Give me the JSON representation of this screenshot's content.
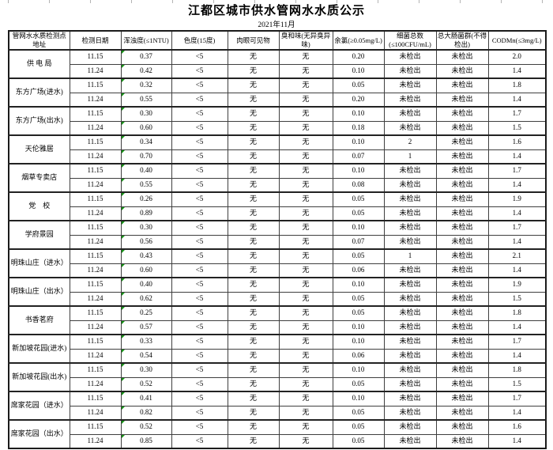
{
  "title": "江都区城市供水管网水水质公示",
  "subtitle": "2021年11月",
  "colors": {
    "flag_green": "#149414",
    "border_dark": "#1b1b1b"
  },
  "table": {
    "columns": [
      "管网水水质检测点地址",
      "检测日期",
      "浑浊度(≤1NTU)",
      "色度(15度)",
      "肉眼可见物",
      "臭和味(无异臭异味)",
      "余氯(≥0.05mg/L)",
      "细菌总数(≤100CFU/mL)",
      "总大肠菌群(不得检出)",
      "CODMn(≤3mg/L)"
    ],
    "groups": [
      {
        "location": "供 电 局",
        "rows": [
          {
            "date": "11.15",
            "turbidity": "0.37",
            "color": "<5",
            "visible": "无",
            "odor": "无",
            "chlorine": "0.20",
            "bacteria": "未检出",
            "coliform": "未检出",
            "codmn": "2.0"
          },
          {
            "date": "11.24",
            "turbidity": "0.42",
            "color": "<5",
            "visible": "无",
            "odor": "无",
            "chlorine": "0.10",
            "bacteria": "未检出",
            "coliform": "未检出",
            "codmn": "1.4"
          }
        ]
      },
      {
        "location": "东方广场(进水)",
        "rows": [
          {
            "date": "11.15",
            "turbidity": "0.32",
            "color": "<5",
            "visible": "无",
            "odor": "无",
            "chlorine": "0.05",
            "bacteria": "未检出",
            "coliform": "未检出",
            "codmn": "1.8"
          },
          {
            "date": "11.24",
            "turbidity": "0.55",
            "color": "<5",
            "visible": "无",
            "odor": "无",
            "chlorine": "0.20",
            "bacteria": "未检出",
            "coliform": "未检出",
            "codmn": "1.4"
          }
        ]
      },
      {
        "location": "东方广场(出水)",
        "rows": [
          {
            "date": "11.15",
            "turbidity": "0.30",
            "color": "<5",
            "visible": "无",
            "odor": "无",
            "chlorine": "0.10",
            "bacteria": "未检出",
            "coliform": "未检出",
            "codmn": "1.7"
          },
          {
            "date": "11.24",
            "turbidity": "0.60",
            "color": "<5",
            "visible": "无",
            "odor": "无",
            "chlorine": "0.18",
            "bacteria": "未检出",
            "coliform": "未检出",
            "codmn": "1.5"
          }
        ]
      },
      {
        "location": "天伦雅居",
        "rows": [
          {
            "date": "11.15",
            "turbidity": "0.34",
            "color": "<5",
            "visible": "无",
            "odor": "无",
            "chlorine": "0.10",
            "bacteria": "2",
            "coliform": "未检出",
            "codmn": "1.6"
          },
          {
            "date": "11.24",
            "turbidity": "0.70",
            "color": "<5",
            "visible": "无",
            "odor": "无",
            "chlorine": "0.07",
            "bacteria": "1",
            "coliform": "未检出",
            "codmn": "1.4"
          }
        ]
      },
      {
        "location": "烟草专卖店",
        "rows": [
          {
            "date": "11.15",
            "turbidity": "0.40",
            "color": "<5",
            "visible": "无",
            "odor": "无",
            "chlorine": "0.10",
            "bacteria": "未检出",
            "coliform": "未检出",
            "codmn": "1.7"
          },
          {
            "date": "11.24",
            "turbidity": "0.55",
            "color": "<5",
            "visible": "无",
            "odor": "无",
            "chlorine": "0.08",
            "bacteria": "未检出",
            "coliform": "未检出",
            "codmn": "1.4"
          }
        ]
      },
      {
        "location": "党　校",
        "rows": [
          {
            "date": "11.15",
            "turbidity": "0.26",
            "color": "<5",
            "visible": "无",
            "odor": "无",
            "chlorine": "0.05",
            "bacteria": "未检出",
            "coliform": "未检出",
            "codmn": "1.9"
          },
          {
            "date": "11.24",
            "turbidity": "0.89",
            "color": "<5",
            "visible": "无",
            "odor": "无",
            "chlorine": "0.05",
            "bacteria": "未检出",
            "coliform": "未检出",
            "codmn": "1.4"
          }
        ]
      },
      {
        "location": "学府景园",
        "rows": [
          {
            "date": "11.15",
            "turbidity": "0.30",
            "color": "<5",
            "visible": "无",
            "odor": "无",
            "chlorine": "0.10",
            "bacteria": "未检出",
            "coliform": "未检出",
            "codmn": "1.7"
          },
          {
            "date": "11.24",
            "turbidity": "0.56",
            "color": "<5",
            "visible": "无",
            "odor": "无",
            "chlorine": "0.07",
            "bacteria": "未检出",
            "coliform": "未检出",
            "codmn": "1.4"
          }
        ]
      },
      {
        "location": "明珠山庄（进水）",
        "rows": [
          {
            "date": "11.15",
            "turbidity": "0.43",
            "color": "<5",
            "visible": "无",
            "odor": "无",
            "chlorine": "0.05",
            "bacteria": "1",
            "coliform": "未检出",
            "codmn": "2.1"
          },
          {
            "date": "11.24",
            "turbidity": "0.60",
            "color": "<5",
            "visible": "无",
            "odor": "无",
            "chlorine": "0.06",
            "bacteria": "未检出",
            "coliform": "未检出",
            "codmn": "1.4"
          }
        ]
      },
      {
        "location": "明珠山庄（出水）",
        "rows": [
          {
            "date": "11.15",
            "turbidity": "0.40",
            "color": "<5",
            "visible": "无",
            "odor": "无",
            "chlorine": "0.10",
            "bacteria": "未检出",
            "coliform": "未检出",
            "codmn": "1.9"
          },
          {
            "date": "11.24",
            "turbidity": "0.62",
            "color": "<5",
            "visible": "无",
            "odor": "无",
            "chlorine": "0.05",
            "bacteria": "未检出",
            "coliform": "未检出",
            "codmn": "1.5"
          }
        ]
      },
      {
        "location": "书香茗府",
        "rows": [
          {
            "date": "11.15",
            "turbidity": "0.25",
            "color": "<5",
            "visible": "无",
            "odor": "无",
            "chlorine": "0.05",
            "bacteria": "未检出",
            "coliform": "未检出",
            "codmn": "1.8"
          },
          {
            "date": "11.24",
            "turbidity": "0.57",
            "color": "<5",
            "visible": "无",
            "odor": "无",
            "chlorine": "0.10",
            "bacteria": "未检出",
            "coliform": "未检出",
            "codmn": "1.4"
          }
        ]
      },
      {
        "location": "新加坡花园(进水)",
        "rows": [
          {
            "date": "11.15",
            "turbidity": "0.33",
            "color": "<5",
            "visible": "无",
            "odor": "无",
            "chlorine": "0.10",
            "bacteria": "未检出",
            "coliform": "未检出",
            "codmn": "1.7"
          },
          {
            "date": "11.24",
            "turbidity": "0.54",
            "color": "<5",
            "visible": "无",
            "odor": "无",
            "chlorine": "0.06",
            "bacteria": "未检出",
            "coliform": "未检出",
            "codmn": "1.4"
          }
        ]
      },
      {
        "location": "新加坡花园(出水)",
        "rows": [
          {
            "date": "11.15",
            "turbidity": "0.30",
            "color": "<5",
            "visible": "无",
            "odor": "无",
            "chlorine": "0.10",
            "bacteria": "未检出",
            "coliform": "未检出",
            "codmn": "1.8"
          },
          {
            "date": "11.24",
            "turbidity": "0.52",
            "color": "<5",
            "visible": "无",
            "odor": "无",
            "chlorine": "0.05",
            "bacteria": "未检出",
            "coliform": "未检出",
            "codmn": "1.5"
          }
        ]
      },
      {
        "location": "席家花园（进水）",
        "rows": [
          {
            "date": "11.15",
            "turbidity": "0.41",
            "color": "<5",
            "visible": "无",
            "odor": "无",
            "chlorine": "0.10",
            "bacteria": "未检出",
            "coliform": "未检出",
            "codmn": "1.7"
          },
          {
            "date": "11.24",
            "turbidity": "0.82",
            "color": "<5",
            "visible": "无",
            "odor": "无",
            "chlorine": "0.05",
            "bacteria": "未检出",
            "coliform": "未检出",
            "codmn": "1.4"
          }
        ]
      },
      {
        "location": "席家花园（出水）",
        "rows": [
          {
            "date": "11.15",
            "turbidity": "0.52",
            "color": "<5",
            "visible": "无",
            "odor": "无",
            "chlorine": "0.05",
            "bacteria": "未检出",
            "coliform": "未检出",
            "codmn": "1.6"
          },
          {
            "date": "11.24",
            "turbidity": "0.85",
            "color": "<5",
            "visible": "无",
            "odor": "无",
            "chlorine": "0.05",
            "bacteria": "未检出",
            "coliform": "未检出",
            "codmn": "1.4"
          }
        ]
      }
    ]
  }
}
